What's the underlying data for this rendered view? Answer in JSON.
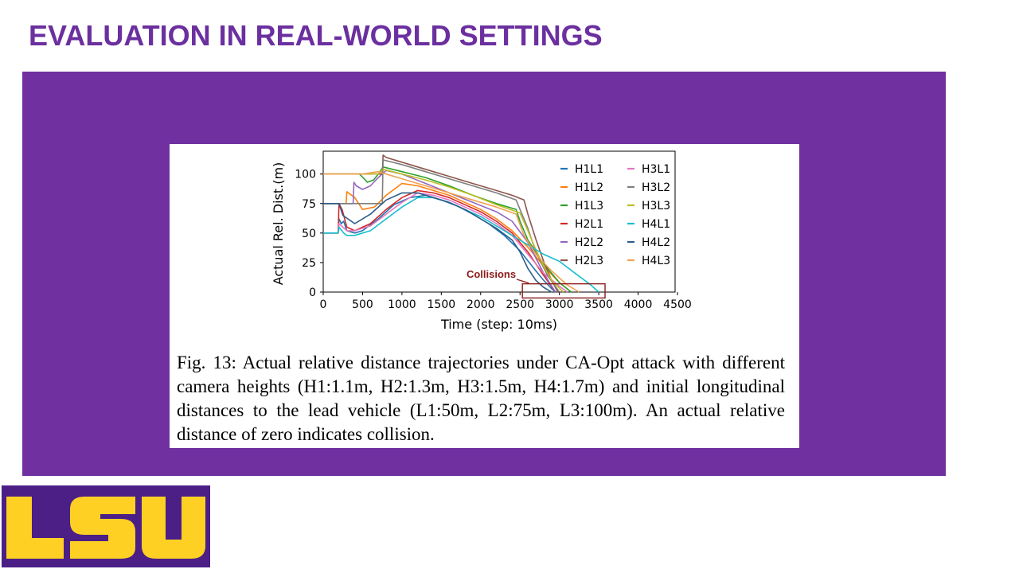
{
  "slide": {
    "title": "EVALUATION IN REAL-WORLD SETTINGS",
    "title_color": "#6b2f9f",
    "panel_color": "#7030a0",
    "logo_text": "LSU",
    "logo_colors": {
      "background": "#4b1f86",
      "letters": "#fdd023"
    }
  },
  "figure": {
    "caption": "Fig. 13: Actual relative distance trajectories under CA-Opt attack with different camera heights (H1:1.1m, H2:1.3m, H3:1.5m, H4:1.7m) and initial longitudinal distances to the lead vehicle (L1:50m, L2:75m, L3:100m). An actual relative distance of zero indicates collision."
  },
  "chart_data": {
    "type": "line",
    "title": "",
    "xlabel": "Time (step: 10ms)",
    "ylabel": "Actual Rel. Dist.(m)",
    "xlim": [
      0,
      4500
    ],
    "ylim": [
      0,
      120
    ],
    "xticks": [
      0,
      500,
      1000,
      1500,
      2000,
      2500,
      3000,
      3500,
      4000,
      4500
    ],
    "yticks": [
      0,
      25,
      50,
      75,
      100
    ],
    "legend_position": "top-right",
    "annotation": {
      "text": "Collisions",
      "color": "#8b1a1a",
      "x_range": [
        2530,
        3580
      ],
      "y_range": [
        -5,
        7
      ]
    },
    "series": [
      {
        "name": "H1L1",
        "color": "#1f77b4",
        "x": [
          0,
          190,
          200,
          230,
          260,
          300,
          400,
          500,
          700,
          900,
          1100,
          1300,
          1500,
          1700,
          1900,
          2100,
          2300,
          2500,
          2700,
          2800,
          2900,
          2950
        ],
        "y": [
          50,
          50,
          62,
          58,
          60,
          52,
          50,
          52,
          62,
          74,
          80,
          82,
          78,
          73,
          66,
          58,
          48,
          35,
          18,
          10,
          3,
          0
        ]
      },
      {
        "name": "H1L2",
        "color": "#ff7f0e",
        "x": [
          0,
          290,
          300,
          400,
          500,
          650,
          800,
          1000,
          1200,
          1400,
          1600,
          1800,
          2000,
          2200,
          2400,
          2600,
          2800,
          3000,
          3150
        ],
        "y": [
          75,
          75,
          85,
          80,
          70,
          72,
          82,
          92,
          90,
          86,
          82,
          76,
          70,
          62,
          52,
          38,
          22,
          8,
          0
        ]
      },
      {
        "name": "H1L3",
        "color": "#2ca02c",
        "x": [
          0,
          450,
          460,
          520,
          560,
          640,
          700,
          760,
          1000,
          1300,
          1600,
          1900,
          2200,
          2450,
          2500,
          2600,
          2800,
          3000,
          3150
        ],
        "y": [
          100,
          100,
          100,
          96,
          93,
          95,
          100,
          106,
          102,
          97,
          90,
          82,
          75,
          70,
          60,
          44,
          24,
          8,
          0
        ]
      },
      {
        "name": "H2L1",
        "color": "#d62728",
        "x": [
          0,
          190,
          200,
          240,
          300,
          400,
          600,
          800,
          1000,
          1200,
          1400,
          1600,
          1800,
          2000,
          2200,
          2400,
          2600,
          2800,
          2950
        ],
        "y": [
          50,
          50,
          75,
          70,
          55,
          52,
          58,
          70,
          80,
          86,
          84,
          80,
          74,
          68,
          60,
          50,
          34,
          14,
          0
        ]
      },
      {
        "name": "H2L2",
        "color": "#9467bd",
        "x": [
          0,
          380,
          390,
          420,
          500,
          600,
          700,
          800,
          1000,
          1300,
          1600,
          1900,
          2200,
          2400,
          2600,
          2800,
          2950
        ],
        "y": [
          75,
          75,
          93,
          90,
          87,
          90,
          97,
          103,
          100,
          92,
          84,
          76,
          68,
          60,
          42,
          16,
          0
        ]
      },
      {
        "name": "H2L3",
        "color": "#8c564b",
        "x": [
          0,
          750,
          760,
          800,
          1000,
          1200,
          1400,
          1600,
          1800,
          2000,
          2200,
          2400,
          2550,
          2600,
          2700,
          2800,
          2900,
          2980
        ],
        "y": [
          100,
          100,
          116,
          114,
          110,
          106,
          102,
          98,
          94,
          90,
          86,
          82,
          78,
          66,
          45,
          26,
          10,
          0
        ]
      },
      {
        "name": "H3L1",
        "color": "#e377c2",
        "x": [
          0,
          190,
          200,
          250,
          300,
          400,
          600,
          800,
          1000,
          1200,
          1400,
          1600,
          1800,
          2000,
          2200,
          2400,
          2600,
          2800,
          3000,
          3100
        ],
        "y": [
          50,
          50,
          58,
          55,
          52,
          52,
          56,
          66,
          76,
          84,
          82,
          78,
          72,
          66,
          58,
          48,
          32,
          16,
          5,
          0
        ]
      },
      {
        "name": "H3L2",
        "color": "#7f7f7f",
        "x": [
          0,
          700,
          750,
          760,
          1000,
          1300,
          1600,
          1900,
          2200,
          2450,
          2500,
          2600,
          2700,
          2850,
          3000
        ],
        "y": [
          75,
          75,
          75,
          112,
          108,
          102,
          96,
          90,
          84,
          78,
          70,
          54,
          34,
          14,
          0
        ]
      },
      {
        "name": "H3L3",
        "color": "#bcbd22",
        "x": [
          0,
          700,
          760,
          1000,
          1300,
          1600,
          1900,
          2200,
          2500,
          2600,
          2700,
          2800,
          2900,
          3050
        ],
        "y": [
          100,
          100,
          104,
          100,
          95,
          89,
          82,
          74,
          67,
          52,
          36,
          22,
          10,
          0
        ]
      },
      {
        "name": "H4L1",
        "color": "#17becf",
        "x": [
          0,
          190,
          200,
          260,
          300,
          400,
          600,
          800,
          1000,
          1200,
          1400,
          1600,
          1800,
          2000,
          2200,
          2400,
          2600,
          2800,
          3000,
          3200,
          3400,
          3500
        ],
        "y": [
          50,
          50,
          55,
          50,
          48,
          48,
          52,
          62,
          72,
          80,
          80,
          76,
          70,
          64,
          56,
          48,
          40,
          32,
          26,
          16,
          6,
          0
        ]
      },
      {
        "name": "H4L2",
        "color": "#2b5c8a",
        "x": [
          0,
          190,
          200,
          250,
          400,
          600,
          800,
          1000,
          1200,
          1400,
          1600,
          1800,
          2000,
          2200,
          2400,
          2500,
          2600,
          2700,
          2800,
          2900
        ],
        "y": [
          75,
          75,
          75,
          65,
          58,
          66,
          78,
          84,
          84,
          80,
          76,
          70,
          62,
          54,
          44,
          34,
          20,
          10,
          4,
          0
        ]
      },
      {
        "name": "H4L3",
        "color": "#f0a150",
        "x": [
          0,
          500,
          700,
          800,
          1000,
          1300,
          1600,
          1900,
          2200,
          2450,
          2550,
          2700,
          2900,
          3100,
          3250
        ],
        "y": [
          100,
          100,
          102,
          100,
          96,
          90,
          84,
          78,
          72,
          66,
          48,
          32,
          18,
          6,
          0
        ]
      }
    ]
  }
}
